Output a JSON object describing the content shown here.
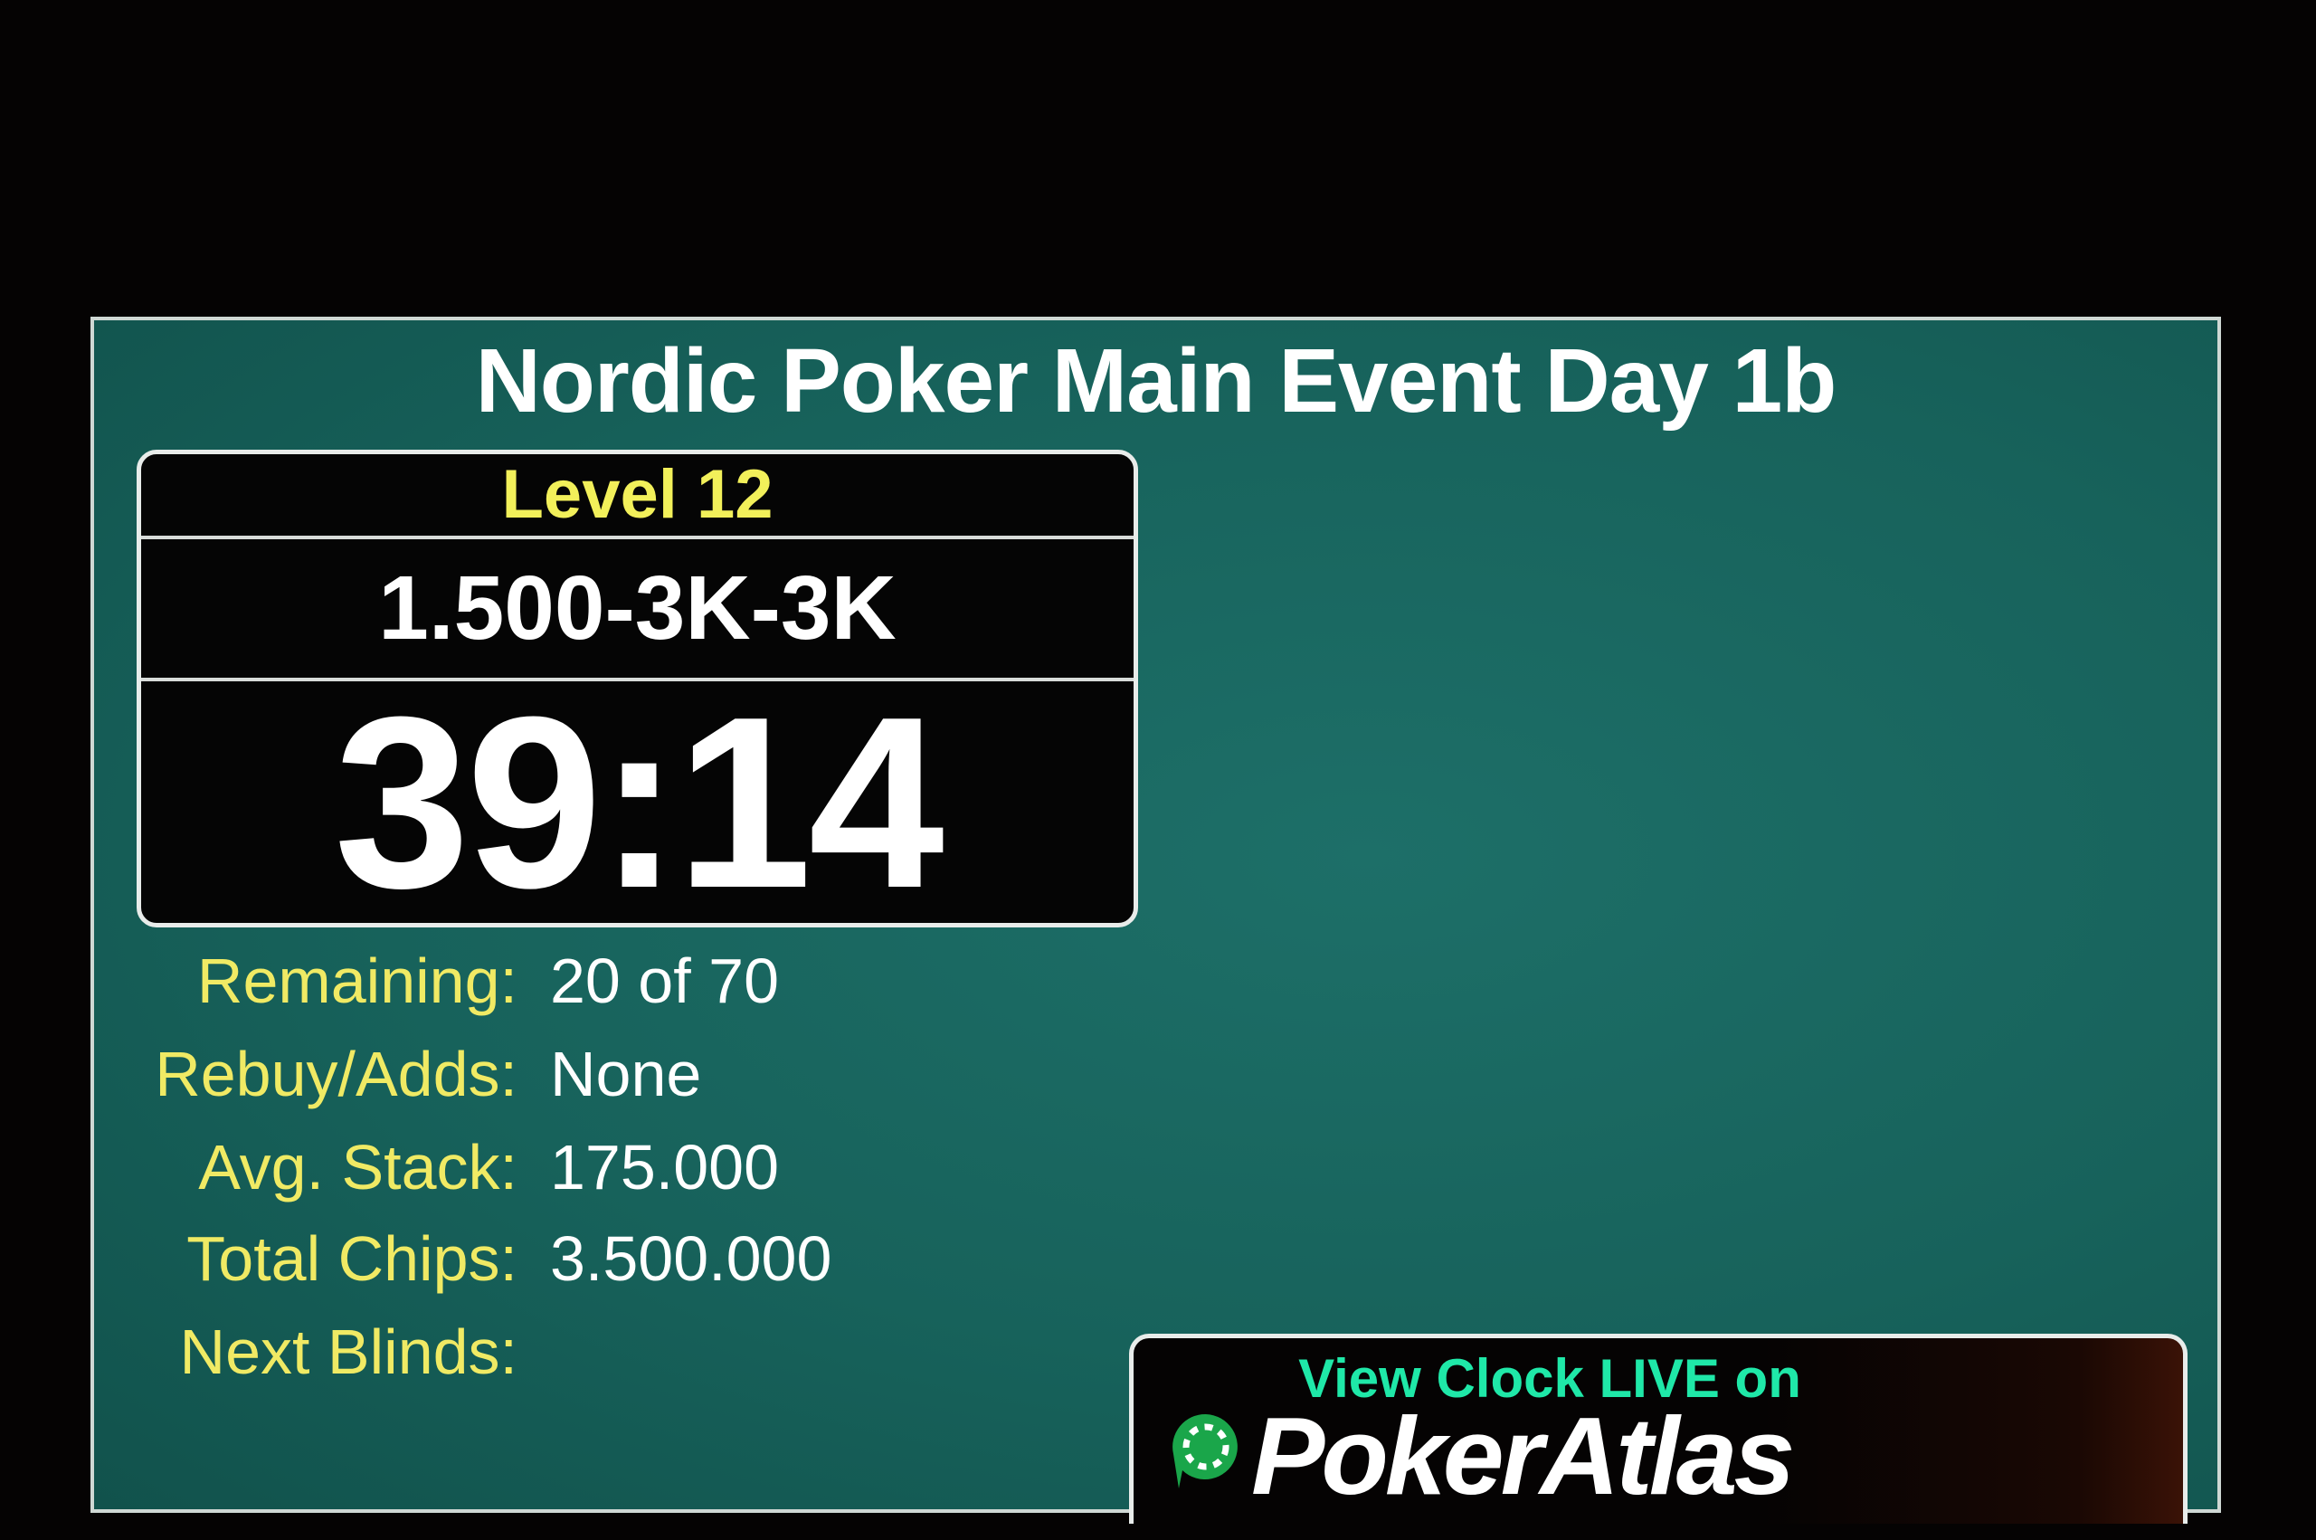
{
  "title": "Nordic Poker Main Event Day 1b",
  "clock": {
    "level": "Level 12",
    "blinds": "1.500-3K-3K",
    "timer": "39:14"
  },
  "stats": [
    {
      "label": "Remaining:",
      "value": "20 of 70"
    },
    {
      "label": "Rebuy/Adds:",
      "value": "None"
    },
    {
      "label": "Avg. Stack:",
      "value": "175.000"
    },
    {
      "label": "Total Chips:",
      "value": "3.500.000"
    },
    {
      "label": "Next Blinds:",
      "value": ""
    }
  ],
  "promo": {
    "tagline": "View Clock LIVE on",
    "brand": "PokerAtlas",
    "logo_icon": "poker-chip-icon"
  },
  "colors": {
    "background": "#17625b",
    "label": "#f0ea64",
    "level": "#f2f05a",
    "tagline": "#1fe8a8",
    "logo": "#1aa64a"
  }
}
